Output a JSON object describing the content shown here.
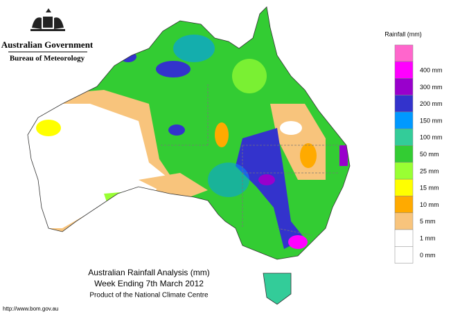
{
  "header": {
    "title": "Australian Government",
    "subtitle": "Bureau of Meteorology"
  },
  "legend": {
    "title": "Rainfall (mm)",
    "items": [
      {
        "label": "400 mm",
        "color": "#ff00ff"
      },
      {
        "label": "300 mm",
        "color": "#9900cc"
      },
      {
        "label": "200 mm",
        "color": "#3333cc"
      },
      {
        "label": "150 mm",
        "color": "#0099ff"
      },
      {
        "label": "100 mm",
        "color": "#33cc99"
      },
      {
        "label": "50 mm",
        "color": "#33cc33"
      },
      {
        "label": "25 mm",
        "color": "#99ff33"
      },
      {
        "label": "15 mm",
        "color": "#ffff00"
      },
      {
        "label": "10 mm",
        "color": "#ffaa00"
      },
      {
        "label": "5 mm",
        "color": "#f8c47c"
      },
      {
        "label": "1 mm",
        "color": "#ffffff"
      },
      {
        "label": "0 mm",
        "color": "#ffffff"
      }
    ]
  },
  "caption": {
    "lines": [
      "Australian Rainfall Analysis (mm)",
      "Week Ending 7th March 2012",
      "Product of the National Climate Centre"
    ]
  },
  "footer": {
    "url": "http://www.bom.gov.au"
  }
}
